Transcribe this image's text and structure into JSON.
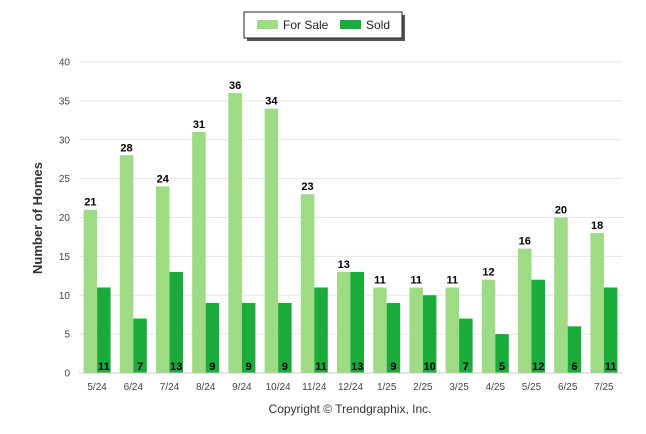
{
  "chart_data": {
    "type": "bar",
    "categories": [
      "5/24",
      "6/24",
      "7/24",
      "8/24",
      "9/24",
      "10/24",
      "11/24",
      "12/24",
      "1/25",
      "2/25",
      "3/25",
      "4/25",
      "5/25",
      "6/25",
      "7/25"
    ],
    "series": [
      {
        "name": "For Sale",
        "color": "#9ddb84",
        "values": [
          21,
          28,
          24,
          31,
          36,
          34,
          23,
          13,
          11,
          11,
          11,
          12,
          16,
          20,
          18
        ]
      },
      {
        "name": "Sold",
        "color": "#1aab3a",
        "values": [
          11,
          7,
          13,
          9,
          9,
          9,
          11,
          13,
          9,
          10,
          7,
          5,
          12,
          6,
          11
        ]
      }
    ],
    "ylabel": "Number of Homes",
    "ylim": [
      0,
      40
    ],
    "yticks": [
      0,
      5,
      10,
      15,
      20,
      25,
      30,
      35,
      40
    ],
    "grid": true,
    "legend_position": "top-center",
    "footer": "Copyright © Trendgraphix, Inc."
  }
}
